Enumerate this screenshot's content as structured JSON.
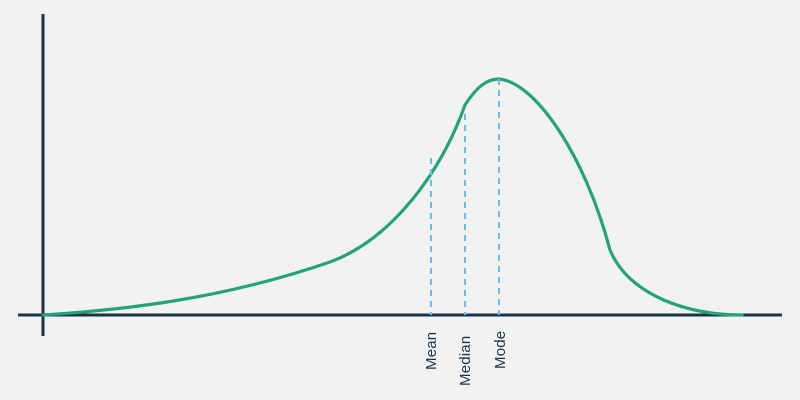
{
  "diagram": {
    "type": "negatively-skewed distribution",
    "colors": {
      "background": "#f2f2f2",
      "axis": "#1b3346",
      "curve": "#22a37a",
      "guides": "#6bbde7",
      "label": "#1b3346"
    },
    "markers": [
      {
        "label": "Mean"
      },
      {
        "label": "Median"
      },
      {
        "label": "Mode"
      }
    ]
  }
}
